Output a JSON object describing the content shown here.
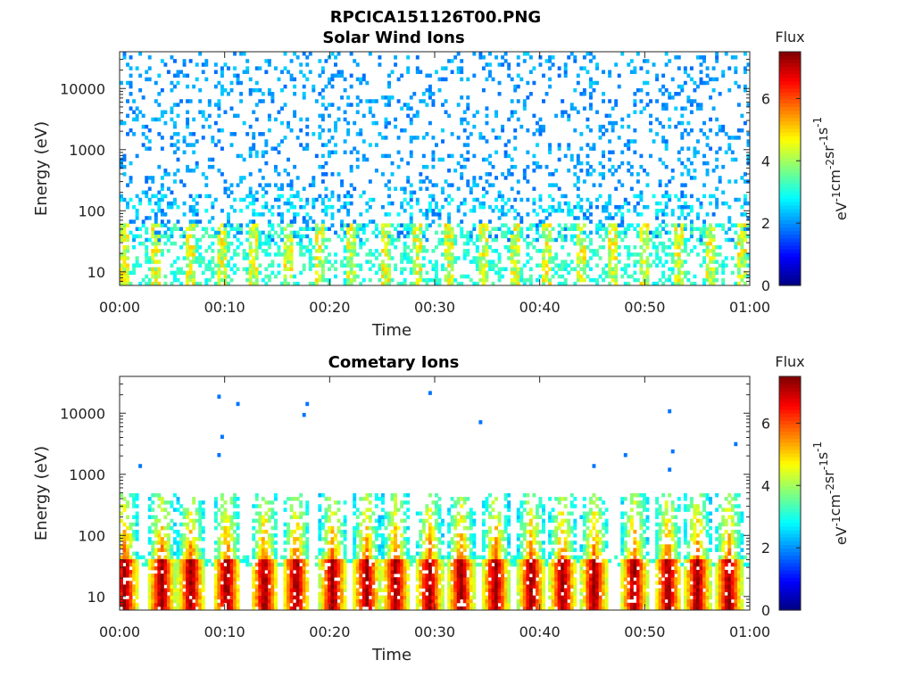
{
  "figure": {
    "title": "RPCICA151126T00.PNG"
  },
  "chart_data": [
    {
      "type": "heatmap",
      "title": "Solar Wind Ions",
      "xlabel": "Time",
      "ylabel": "Energy (eV)",
      "x_ticks": [
        "00:00",
        "00:10",
        "00:20",
        "00:30",
        "00:40",
        "00:50",
        "01:00"
      ],
      "x_range_minutes": [
        0,
        60
      ],
      "y_scale": "log",
      "y_ticks": [
        "10",
        "100",
        "1000",
        "10000"
      ],
      "y_range": [
        6,
        40000
      ],
      "colorbar": {
        "title": "Flux",
        "label": "eV-1cm-2sr-1s-1",
        "range": [
          0,
          7.5
        ],
        "ticks": [
          "0",
          "2",
          "4",
          "6"
        ],
        "colormap": "jet"
      },
      "pattern": "sparse low-flux counts (about 2) scattered from 30 eV to 30000 eV; flux about 3-5 below 60 eV with bursts recurring about every 3 minutes"
    },
    {
      "type": "heatmap",
      "title": "Cometary Ions",
      "xlabel": "Time",
      "ylabel": "Energy (eV)",
      "x_ticks": [
        "00:00",
        "00:10",
        "00:20",
        "00:30",
        "00:40",
        "00:50",
        "01:00"
      ],
      "x_range_minutes": [
        0,
        60
      ],
      "y_scale": "log",
      "y_ticks": [
        "10",
        "100",
        "1000",
        "10000"
      ],
      "y_range": [
        6,
        40000
      ],
      "colorbar": {
        "title": "Flux",
        "label": "eV-1cm-2sr-1s-1",
        "range": [
          0,
          7.5
        ],
        "ticks": [
          "0",
          "2",
          "4",
          "6"
        ],
        "colormap": "jet"
      },
      "burst_times_minutes": [
        0.5,
        4.0,
        6.8,
        10.2,
        13.8,
        16.8,
        20.3,
        23.5,
        26.3,
        29.5,
        32.5,
        35.8,
        39.2,
        42.2,
        45.2,
        49.0,
        52.2,
        55.0,
        58.0
      ],
      "pattern": "recurring bursts about every 3 minutes, peak flux about 6-7 between 8 and 40 eV, extending up to about 500 eV with lower flux"
    }
  ]
}
